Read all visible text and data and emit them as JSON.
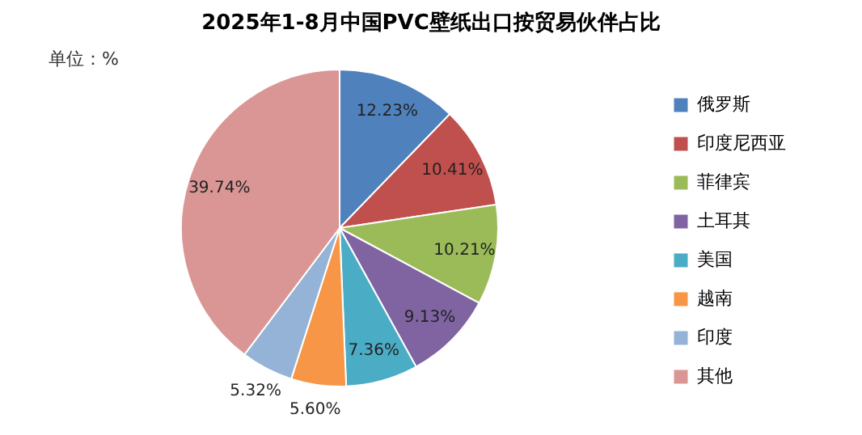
{
  "chart_data": {
    "type": "pie",
    "title": "2025年1-8月中国PVC壁纸出口按贸易伙伴占比",
    "categories": [
      "俄罗斯",
      "印度尼西亚",
      "菲律宾",
      "土耳其",
      "美国",
      "越南",
      "印度",
      "其他"
    ],
    "values": [
      12.23,
      10.41,
      10.21,
      9.13,
      7.36,
      5.6,
      5.32,
      39.74
    ],
    "value_labels": [
      "12.23%",
      "10.41%",
      "10.21%",
      "9.13%",
      "7.36%",
      "5.60%",
      "5.32%",
      "39.74%"
    ],
    "colors": [
      "#4f81bd",
      "#c0504d",
      "#9bbb59",
      "#8064a2",
      "#4bacc6",
      "#f79646",
      "#95b3d7",
      "#d99694"
    ],
    "legend": "right",
    "annotations": [
      "单位：%"
    ]
  }
}
